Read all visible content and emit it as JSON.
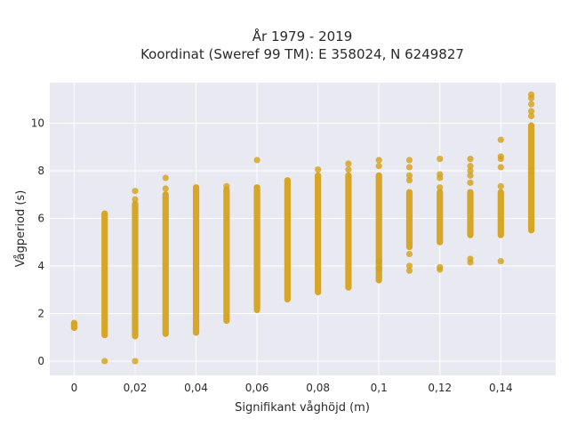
{
  "chart_data": {
    "type": "scatter",
    "title_line1": "År 1979 - 2019",
    "title_line2": "Koordinat (Sweref 99 TM): E 358024, N 6249827",
    "xlabel": "Signifikant våghöjd (m)",
    "ylabel": "Vågperiod (s)",
    "xlim": [
      -0.008,
      0.158
    ],
    "ylim": [
      -0.6,
      11.7
    ],
    "x_ticks": [
      0,
      0.02,
      0.04,
      0.06,
      0.08,
      0.1,
      0.12,
      0.14
    ],
    "x_tick_labels": [
      "0",
      "0,02",
      "0,04",
      "0,06",
      "0,08",
      "0,1",
      "0,12",
      "0,14"
    ],
    "y_ticks": [
      0,
      2,
      4,
      6,
      8,
      10
    ],
    "y_tick_labels": [
      "0",
      "2",
      "4",
      "6",
      "8",
      "10"
    ],
    "grid": true,
    "colors": {
      "marker": "#d4a017",
      "plot_bg": "#e9e9f1",
      "grid": "#ffffff"
    },
    "columns": [
      {
        "x": 0.0,
        "ymin": 1.4,
        "ymax": 1.6,
        "outliers": []
      },
      {
        "x": 0.01,
        "ymin": 1.1,
        "ymax": 6.2,
        "outliers": [
          0.0
        ]
      },
      {
        "x": 0.02,
        "ymin": 1.05,
        "ymax": 6.6,
        "outliers": [
          0.0,
          6.8,
          7.15
        ]
      },
      {
        "x": 0.03,
        "ymin": 1.15,
        "ymax": 7.0,
        "outliers": [
          7.25,
          7.7
        ]
      },
      {
        "x": 0.04,
        "ymin": 1.2,
        "ymax": 7.3,
        "outliers": []
      },
      {
        "x": 0.05,
        "ymin": 1.7,
        "ymax": 7.2,
        "outliers": [
          7.35
        ]
      },
      {
        "x": 0.06,
        "ymin": 2.15,
        "ymax": 7.3,
        "outliers": [
          8.45
        ]
      },
      {
        "x": 0.07,
        "ymin": 2.6,
        "ymax": 7.6,
        "outliers": []
      },
      {
        "x": 0.08,
        "ymin": 2.9,
        "ymax": 7.8,
        "outliers": [
          8.05
        ]
      },
      {
        "x": 0.09,
        "ymin": 3.1,
        "ymax": 7.8,
        "outliers": [
          8.05,
          8.3
        ]
      },
      {
        "x": 0.1,
        "ymin": 3.4,
        "ymax": 7.8,
        "outliers": [
          3.9,
          4.2,
          8.2,
          8.45
        ]
      },
      {
        "x": 0.11,
        "ymin": 4.8,
        "ymax": 7.1,
        "outliers": [
          3.8,
          4.0,
          4.5,
          7.6,
          7.8,
          8.15,
          8.45
        ]
      },
      {
        "x": 0.12,
        "ymin": 5.0,
        "ymax": 7.1,
        "outliers": [
          3.85,
          3.95,
          7.3,
          7.7,
          7.85,
          8.5
        ]
      },
      {
        "x": 0.13,
        "ymin": 5.3,
        "ymax": 7.1,
        "outliers": [
          4.15,
          4.3,
          7.5,
          7.8,
          8.0,
          8.2,
          8.5
        ]
      },
      {
        "x": 0.14,
        "ymin": 5.3,
        "ymax": 7.1,
        "outliers": [
          4.2,
          7.35,
          8.15,
          8.5,
          8.6,
          9.3
        ]
      },
      {
        "x": 0.15,
        "ymin": 5.5,
        "ymax": 9.9,
        "outliers": [
          10.3,
          10.5,
          10.8,
          11.05,
          11.2
        ]
      }
    ]
  }
}
